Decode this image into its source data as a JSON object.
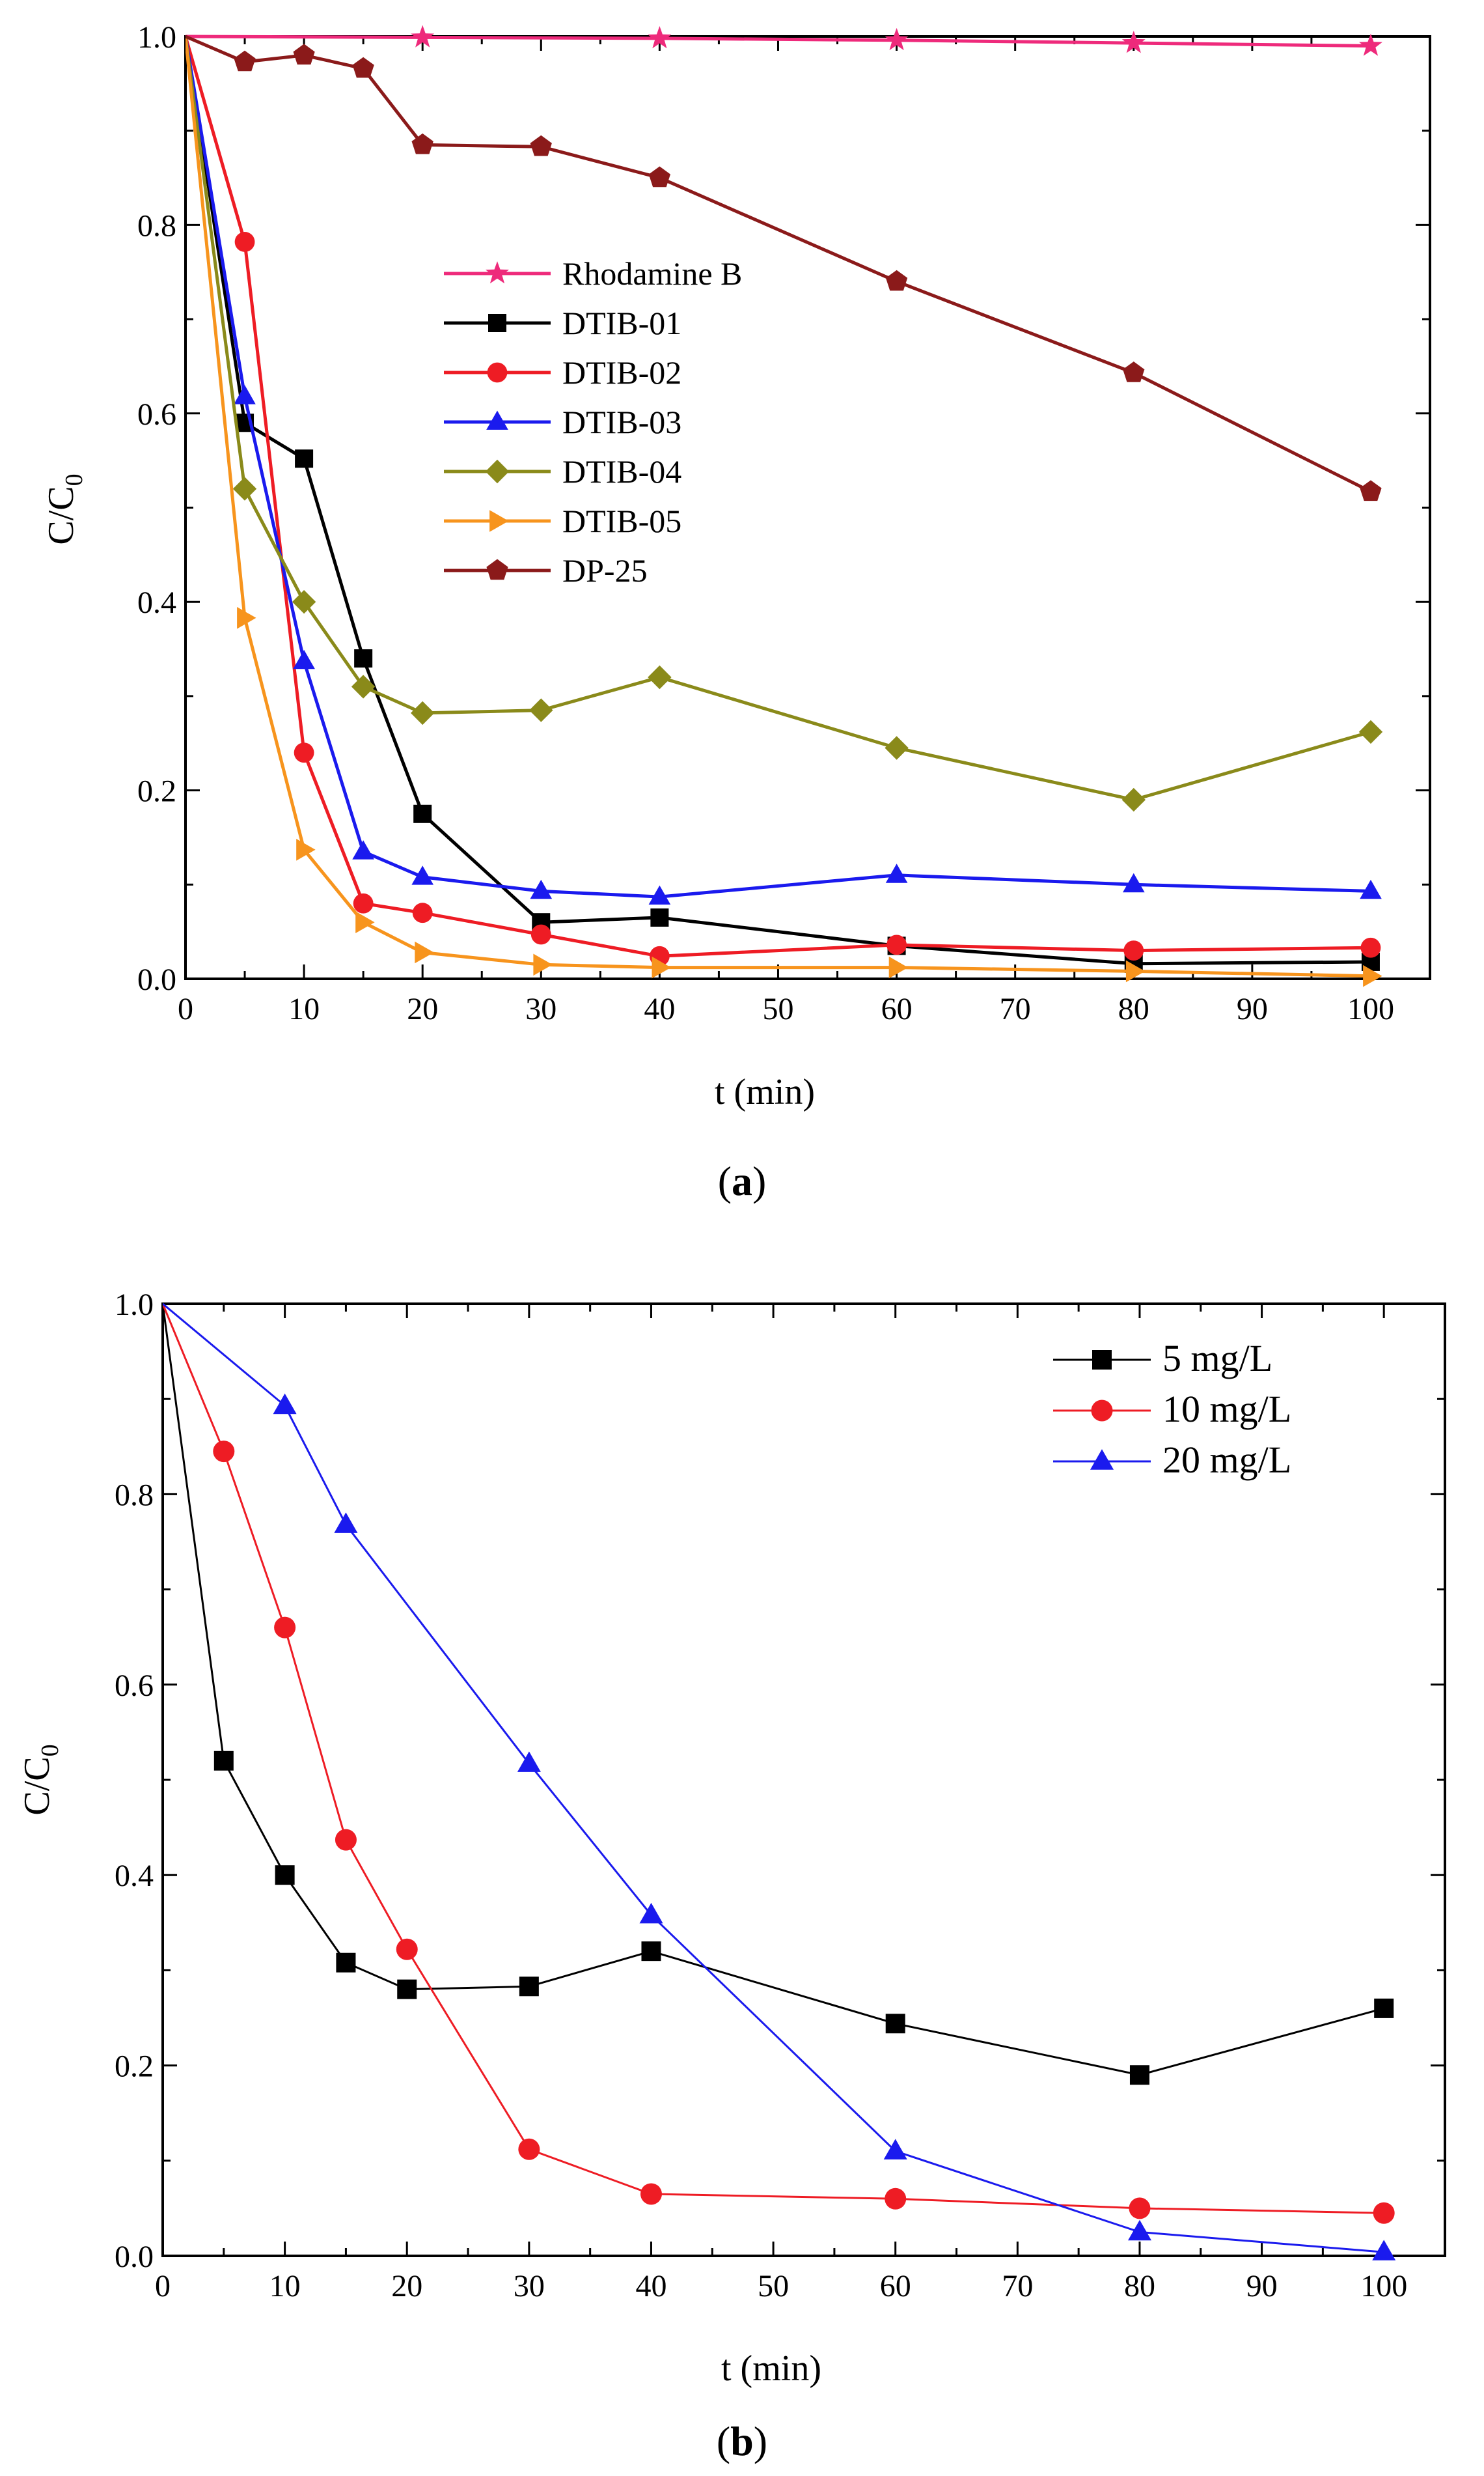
{
  "chart_data": [
    {
      "type": "line",
      "panel_label": "a",
      "xlabel": "t (min)",
      "ylabel_main": "C/C",
      "ylabel_sub": "0",
      "xlim": [
        0,
        105
      ],
      "ylim": [
        0,
        1.0
      ],
      "xticks": [
        0,
        10,
        20,
        30,
        40,
        50,
        60,
        70,
        80,
        90,
        100
      ],
      "yticks": [
        0.0,
        0.2,
        0.4,
        0.6,
        0.8,
        1.0
      ],
      "ytick_labels": [
        "0.0",
        "0.2",
        "0.4",
        "0.6",
        "0.8",
        "1.0"
      ],
      "legend_position": "center",
      "series": [
        {
          "name": "Rhodamine B",
          "color": "#ee2a7b",
          "marker": "star",
          "x": [
            0,
            20,
            40,
            60,
            80,
            100
          ],
          "y": [
            1.0,
            0.999,
            0.998,
            0.996,
            0.993,
            0.99
          ]
        },
        {
          "name": "DTIB-01",
          "color": "#000000",
          "marker": "square",
          "x": [
            0,
            5,
            10,
            15,
            20,
            30,
            40,
            60,
            80,
            100
          ],
          "y": [
            1.0,
            0.59,
            0.552,
            0.34,
            0.175,
            0.06,
            0.065,
            0.035,
            0.016,
            0.018
          ]
        },
        {
          "name": "DTIB-02",
          "color": "#ee1c24",
          "marker": "circle",
          "x": [
            0,
            5,
            10,
            15,
            20,
            30,
            40,
            60,
            80,
            100
          ],
          "y": [
            1.0,
            0.782,
            0.24,
            0.08,
            0.07,
            0.047,
            0.024,
            0.036,
            0.03,
            0.033
          ]
        },
        {
          "name": "DTIB-03",
          "color": "#1a1aee",
          "marker": "triangle-up",
          "x": [
            0,
            5,
            10,
            15,
            20,
            30,
            40,
            60,
            80,
            100
          ],
          "y": [
            1.0,
            0.618,
            0.337,
            0.135,
            0.108,
            0.093,
            0.087,
            0.11,
            0.1,
            0.093
          ]
        },
        {
          "name": "DTIB-04",
          "color": "#8a8a1a",
          "marker": "diamond",
          "x": [
            0,
            5,
            10,
            15,
            20,
            30,
            40,
            60,
            80,
            100
          ],
          "y": [
            1.0,
            0.52,
            0.4,
            0.31,
            0.282,
            0.285,
            0.32,
            0.245,
            0.19,
            0.262
          ]
        },
        {
          "name": "DTIB-05",
          "color": "#f7941d",
          "marker": "triangle-right",
          "x": [
            0,
            5,
            10,
            15,
            20,
            30,
            40,
            60,
            80,
            100
          ],
          "y": [
            1.0,
            0.383,
            0.137,
            0.06,
            0.028,
            0.015,
            0.012,
            0.012,
            0.008,
            0.003
          ]
        },
        {
          "name": "DP-25",
          "color": "#8b1a1a",
          "marker": "pentagon",
          "x": [
            0,
            5,
            10,
            15,
            20,
            30,
            40,
            60,
            80,
            100
          ],
          "y": [
            1.0,
            0.973,
            0.98,
            0.966,
            0.885,
            0.883,
            0.85,
            0.74,
            0.643,
            0.517
          ]
        }
      ]
    },
    {
      "type": "line",
      "panel_label": "b",
      "xlabel": "t (min)",
      "ylabel_main": "C/C",
      "ylabel_sub": "0",
      "xlim": [
        0,
        105
      ],
      "ylim": [
        0,
        1.0
      ],
      "xticks": [
        0,
        10,
        20,
        30,
        40,
        50,
        60,
        70,
        80,
        90,
        100
      ],
      "yticks": [
        0.0,
        0.2,
        0.4,
        0.6,
        0.8,
        1.0
      ],
      "ytick_labels": [
        "0.0",
        "0.2",
        "0.4",
        "0.6",
        "0.8",
        "1.0"
      ],
      "legend_position": "top-right",
      "series": [
        {
          "name": "5 mg/L",
          "color": "#000000",
          "marker": "square",
          "x": [
            0,
            5,
            10,
            15,
            20,
            30,
            40,
            60,
            80,
            100
          ],
          "y": [
            1.0,
            0.52,
            0.4,
            0.308,
            0.28,
            0.283,
            0.32,
            0.244,
            0.19,
            0.26
          ]
        },
        {
          "name": "10 mg/L",
          "color": "#ee1c24",
          "marker": "circle",
          "x": [
            0,
            5,
            10,
            15,
            20,
            30,
            40,
            60,
            80,
            100
          ],
          "y": [
            1.0,
            0.845,
            0.66,
            0.437,
            0.322,
            0.112,
            0.065,
            0.06,
            0.05,
            0.045
          ]
        },
        {
          "name": "20 mg/L",
          "color": "#1a1aee",
          "marker": "triangle-up",
          "x": [
            0,
            10,
            15,
            30,
            40,
            60,
            80,
            100
          ],
          "y": [
            1.0,
            0.893,
            0.768,
            0.517,
            0.358,
            0.11,
            0.025,
            0.004
          ]
        }
      ]
    }
  ]
}
